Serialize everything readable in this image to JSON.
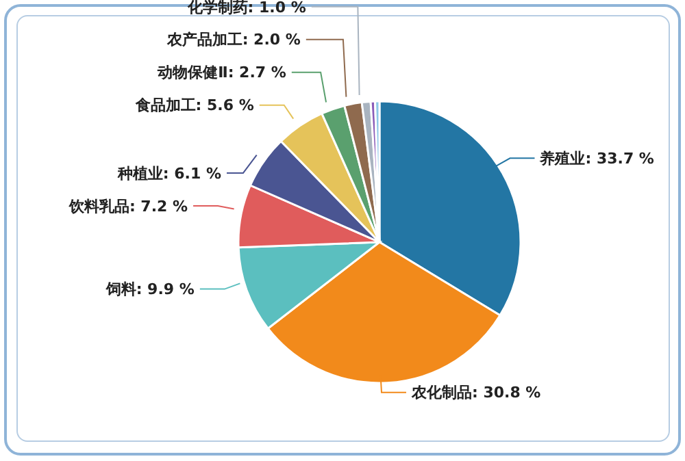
{
  "chart_data": {
    "type": "pie",
    "categories": [
      "养殖业",
      "农化制品",
      "饲料",
      "饮料乳品",
      "种植业",
      "食品加工",
      "动物保健Ⅱ",
      "农产品加工",
      "化学制药",
      null,
      null
    ],
    "values": [
      33.7,
      30.8,
      9.9,
      7.2,
      6.1,
      5.6,
      2.7,
      2.0,
      1.0,
      0.5,
      0.5
    ],
    "value_labels": [
      "33.7 %",
      "30.8 %",
      "9.9 %",
      "7.2 %",
      "6.1 %",
      "5.6 %",
      "2.7 %",
      "2.0 %",
      "1.0 %",
      null,
      null
    ],
    "colors": [
      "#2376a4",
      "#f28a1b",
      "#5bbfbf",
      "#e05c5c",
      "#4a5592",
      "#e5c35a",
      "#5aa06e",
      "#8f6a4e",
      "#a9b4c0",
      "#8b5cb8",
      "#8ec8e8"
    ]
  }
}
